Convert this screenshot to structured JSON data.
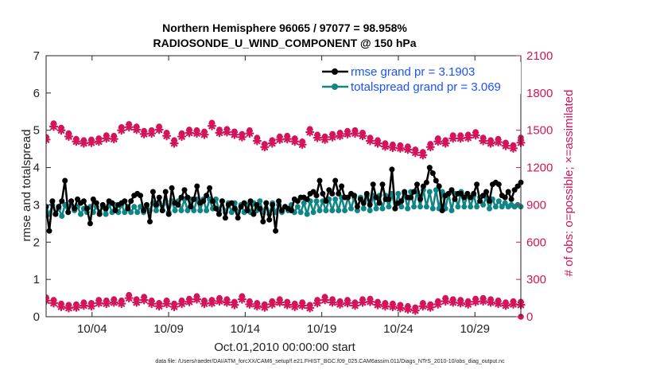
{
  "chart_data": {
    "type": "line",
    "title_line1": "Northern Hemisphere 96065 / 97077 = 98.958%",
    "title_line2": "RADIOSONDE_U_WIND_COMPONENT @ 150 hPa",
    "xlabel": "Oct.01,2010 00:00:00 start",
    "ylabel_left": "rmse and totalspread",
    "ylabel_right": "# of obs: o=possible; ×=assimilated",
    "footer": "data file: /Users/raeder/DAI/ATM_forcXX/CAM6_setup/f.e21.FHIST_BGC.f09_025.CAM6assim.011/Diags_NTrS_2010-10/obs_diag_output.nc",
    "xlim": [
      1,
      32
    ],
    "ylim_left": [
      0,
      7
    ],
    "ylim_right": [
      0,
      2100
    ],
    "yticks_left": [
      "0",
      "1",
      "2",
      "3",
      "4",
      "5",
      "6",
      "7"
    ],
    "yticks_right": [
      "0",
      "300",
      "600",
      "900",
      "1200",
      "1500",
      "1800",
      "2100"
    ],
    "xticks": [
      {
        "day": 4,
        "label": "10/04"
      },
      {
        "day": 9,
        "label": "10/09"
      },
      {
        "day": 14,
        "label": "10/14"
      },
      {
        "day": 19,
        "label": "10/19"
      },
      {
        "day": 24,
        "label": "10/24"
      },
      {
        "day": 29,
        "label": "10/29"
      }
    ],
    "legend": [
      {
        "name": "rmse grand pr = 3.1903",
        "color": "#000000"
      },
      {
        "name": "totalspread grand pr = 3.069",
        "color": "#108585"
      }
    ],
    "colors": {
      "rmse": "#000000",
      "spread": "#108585",
      "obs": "#d4145a",
      "legend_text": "#1a53ff"
    },
    "series": [
      {
        "name": "rmse",
        "axis": "left",
        "values": [
          2.95,
          2.3,
          3.1,
          2.75,
          2.95,
          3.1,
          3.65,
          2.8,
          3.1,
          2.9,
          3.15,
          3.05,
          3.1,
          2.9,
          2.5,
          3.15,
          3.05,
          2.75,
          3.0,
          2.9,
          3.1,
          3.05,
          2.85,
          3.0,
          3.05,
          3.1,
          2.9,
          3.1,
          3.25,
          3.3,
          3.25,
          2.85,
          3.0,
          2.55,
          3.35,
          3.0,
          3.2,
          2.85,
          3.35,
          2.75,
          3.45,
          3.05,
          3.0,
          3.2,
          3.4,
          3.2,
          2.95,
          3.15,
          3.5,
          3.05,
          3.1,
          3.25,
          3.45,
          3.1,
          2.9,
          2.75,
          3.1,
          2.65,
          3.0,
          3.05,
          2.9,
          2.65,
          2.95,
          3.05,
          2.85,
          3.1,
          2.75,
          3.0,
          2.9,
          2.55,
          3.05,
          2.6,
          3.0,
          2.3,
          3.1,
          2.85,
          2.95,
          2.9,
          2.85,
          3.15,
          3.1,
          3.2,
          3.2,
          3.15,
          3.3,
          3.35,
          3.25,
          3.65,
          3.3,
          3.1,
          3.4,
          3.3,
          3.65,
          3.3,
          3.5,
          3.2,
          3.2,
          3.3,
          3.25,
          2.95,
          3.15,
          3.05,
          3.3,
          3.0,
          3.55,
          3.2,
          3.05,
          3.55,
          3.15,
          3.15,
          3.95,
          2.9,
          3.05,
          3.1,
          3.35,
          3.2,
          3.2,
          3.35,
          3.55,
          3.15,
          3.5,
          3.6,
          4.0,
          3.85,
          3.65,
          3.5,
          2.85,
          3.25,
          3.3,
          3.4,
          3.15,
          3.3,
          3.3,
          3.2,
          3.3,
          3.2,
          3.3,
          3.55,
          3.1,
          3.25,
          3.35,
          3.1,
          3.55,
          3.6,
          3.55,
          3.25,
          3.2,
          3.35,
          3.15,
          3.4,
          3.5,
          3.6
        ]
      },
      {
        "name": "totalspread",
        "axis": "left",
        "values": [
          2.95,
          2.75,
          3.0,
          2.75,
          2.9,
          2.7,
          3.0,
          2.8,
          3.0,
          2.85,
          2.95,
          2.75,
          2.9,
          2.8,
          2.95,
          2.8,
          2.95,
          2.8,
          2.95,
          2.75,
          3.0,
          2.8,
          3.0,
          2.8,
          3.0,
          2.8,
          2.95,
          2.8,
          2.95,
          2.8,
          2.95,
          2.8,
          2.95,
          2.85,
          3.05,
          2.85,
          3.05,
          2.85,
          3.1,
          2.8,
          3.1,
          2.85,
          3.1,
          2.85,
          3.15,
          2.85,
          3.15,
          2.85,
          3.15,
          2.85,
          3.15,
          2.85,
          3.15,
          2.9,
          3.15,
          2.85,
          3.1,
          2.8,
          3.05,
          2.8,
          3.05,
          2.8,
          3.0,
          2.8,
          3.0,
          2.8,
          3.05,
          2.85,
          3.1,
          2.8,
          3.05,
          2.75,
          3.05,
          2.8,
          3.0,
          2.8,
          2.95,
          2.85,
          3.0,
          2.8,
          2.95,
          2.8,
          3.05,
          2.75,
          3.1,
          2.8,
          3.1,
          2.85,
          3.1,
          2.85,
          3.15,
          2.85,
          3.15,
          2.85,
          3.2,
          2.85,
          3.2,
          2.9,
          3.2,
          2.85,
          3.2,
          2.9,
          3.25,
          2.85,
          3.25,
          2.9,
          3.25,
          2.9,
          3.25,
          2.95,
          3.3,
          2.9,
          3.3,
          2.95,
          3.3,
          2.9,
          3.35,
          2.95,
          3.35,
          2.95,
          3.4,
          2.95,
          3.35,
          2.9,
          3.4,
          2.9,
          3.35,
          2.9,
          3.3,
          2.85,
          3.3,
          2.95,
          3.35,
          2.95,
          3.3,
          2.95,
          3.25,
          2.95,
          3.2,
          3.0,
          3.2,
          2.9,
          3.15,
          2.95,
          3.1,
          2.95,
          3.05,
          2.95,
          3.0,
          2.95,
          3.0,
          2.95
        ]
      },
      {
        "name": "obs_possible",
        "axis": "right",
        "values": [
          1445,
          1555,
          1520,
          1475,
          1430,
          1420,
          1425,
          1435,
          1460,
          1455,
          1525,
          1550,
          1530,
          1495,
          1500,
          1530,
          1480,
          1420,
          1475,
          1505,
          1500,
          1490,
          1560,
          1505,
          1510,
          1490,
          1470,
          1500,
          1440,
          1390,
          1420,
          1450,
          1455,
          1435,
          1410,
          1510,
          1465,
          1450,
          1470,
          1480,
          1495,
          1500,
          1480,
          1440,
          1420,
          1395,
          1385,
          1380,
          1370,
          1345,
          1325,
          1390,
          1435,
          1420,
          1460,
          1460,
          1465,
          1485,
          1440,
          1420,
          1430,
          1400,
          1380,
          1440
        ]
      },
      {
        "name": "obs_assimilated",
        "axis": "right",
        "values": [
          1425,
          1530,
          1500,
          1450,
          1410,
          1395,
          1400,
          1410,
          1435,
          1430,
          1500,
          1525,
          1505,
          1470,
          1475,
          1505,
          1455,
          1395,
          1450,
          1480,
          1475,
          1465,
          1535,
          1480,
          1485,
          1465,
          1445,
          1475,
          1415,
          1365,
          1395,
          1425,
          1430,
          1410,
          1385,
          1485,
          1440,
          1425,
          1445,
          1455,
          1470,
          1475,
          1455,
          1415,
          1395,
          1370,
          1360,
          1355,
          1345,
          1320,
          1300,
          1365,
          1410,
          1395,
          1435,
          1435,
          1440,
          1460,
          1415,
          1395,
          1405,
          1375,
          1355,
          1400
        ]
      },
      {
        "name": "obs_bottom",
        "axis": "right",
        "values": [
          155,
          135,
          105,
          95,
          100,
          115,
          110,
          135,
          130,
          140,
          130,
          175,
          140,
          160,
          130,
          110,
          130,
          105,
          130,
          145,
          165,
          130,
          135,
          150,
          140,
          120,
          165,
          125,
          110,
          100,
          125,
          140,
          120,
          105,
          115,
          95,
          135,
          160,
          140,
          125,
          135,
          115,
          140,
          145,
          120,
          110,
          105,
          95,
          85,
          75,
          110,
          100,
          125,
          150,
          140,
          135,
          125,
          145,
          150,
          140,
          130,
          115,
          125,
          120
        ]
      }
    ]
  }
}
